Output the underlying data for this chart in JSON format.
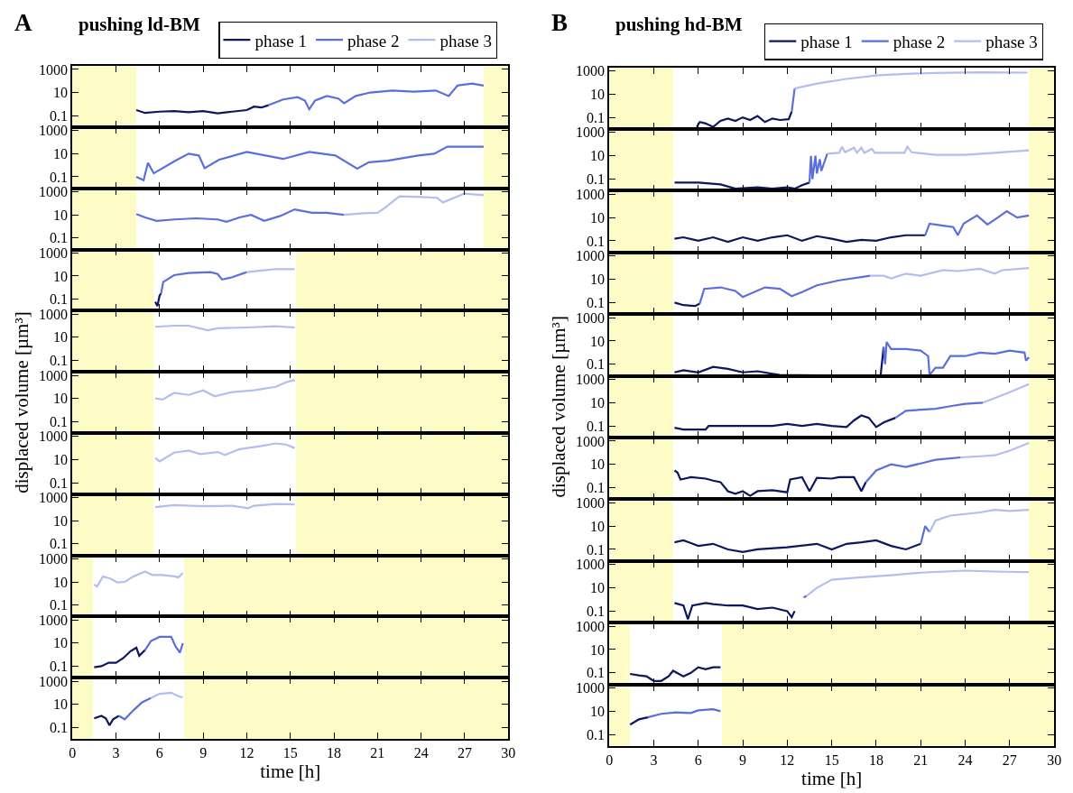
{
  "chart_data": [
    {
      "type": "line",
      "title": "pushing ld-BM",
      "annotations": [
        "A"
      ],
      "legend": "top right",
      "log": "y",
      "tick_labels": "y",
      "xlim": [
        0,
        30
      ],
      "xticks": [
        0,
        3,
        6,
        9,
        12,
        15,
        18,
        21,
        24,
        27,
        30
      ],
      "ylim": [
        0.01,
        2000
      ],
      "yticks": [
        0.1,
        10,
        1000
      ],
      "bands": [
        {
          "axis": "x",
          "from": 0,
          "to": 4.4,
          "color": "#fefcc6"
        },
        {
          "axis": "x",
          "from": 28.3,
          "to": 30,
          "color": "#fefcc6"
        }
      ],
      "series": [
        {
          "name": "phase 1",
          "color": "#0c1761",
          "x": [
            4.4,
            5,
            6,
            7,
            8,
            9,
            10,
            11,
            12,
            12.5,
            13,
            13.5
          ],
          "values": [
            0.3,
            0.17,
            0.22,
            0.25,
            0.2,
            0.25,
            0.16,
            0.22,
            0.3,
            0.6,
            0.5,
            0.8
          ]
        },
        {
          "name": "phase 2",
          "color": "#5a6fdb",
          "x": [
            13.5,
            14.5,
            15.5,
            16,
            16.3,
            16.7,
            17.5,
            18.3,
            18.7,
            19.5,
            20.5,
            22,
            23.5,
            25,
            25.9,
            26.5,
            27.5,
            28.3
          ],
          "values": [
            0.8,
            2.5,
            4,
            2,
            0.35,
            2,
            5,
            3,
            1.2,
            5,
            10,
            15,
            12,
            15,
            5,
            40,
            60,
            40
          ]
        }
      ]
    },
    {
      "type": "line",
      "log": "y",
      "tick_labels": "y",
      "xlim": [
        0,
        30
      ],
      "xticks": [
        0,
        3,
        6,
        9,
        12,
        15,
        18,
        21,
        24,
        27,
        30
      ],
      "ylim": [
        0.01,
        2000
      ],
      "yticks": [
        0.1,
        10,
        1000
      ],
      "bands": [
        {
          "axis": "x",
          "from": 0,
          "to": 4.4,
          "color": "#fefcc6"
        },
        {
          "axis": "x",
          "from": 28.3,
          "to": 30,
          "color": "#fefcc6"
        }
      ],
      "series": [
        {
          "name": "phase 2",
          "color": "#5a6fdb",
          "x": [
            4.4,
            4.9,
            5.2,
            5.6,
            7.1,
            8,
            8.7,
            9.1,
            10.1,
            12,
            14.5,
            16.3,
            18.1,
            19.6,
            20.4,
            21.7,
            23.8,
            24.9,
            25.8,
            28.3
          ],
          "values": [
            0.1,
            0.05,
            1.6,
            0.2,
            2.5,
            10,
            7,
            0.55,
            3,
            14,
            3.5,
            14,
            7,
            0.5,
            1.8,
            2.5,
            7,
            10,
            40,
            40
          ]
        }
      ]
    },
    {
      "type": "line",
      "log": "y",
      "tick_labels": "y",
      "xlim": [
        0,
        30
      ],
      "xticks": [
        0,
        3,
        6,
        9,
        12,
        15,
        18,
        21,
        24,
        27,
        30
      ],
      "ylim": [
        0.01,
        2000
      ],
      "yticks": [
        0.1,
        10,
        1000
      ],
      "bands": [
        {
          "axis": "x",
          "from": 0,
          "to": 4.4,
          "color": "#fefcc6"
        },
        {
          "axis": "x",
          "from": 28.3,
          "to": 30,
          "color": "#fefcc6"
        }
      ],
      "series": [
        {
          "name": "phase 2",
          "color": "#5a6fdb",
          "x": [
            4.4,
            5,
            5.8,
            7,
            8.5,
            10,
            10.6,
            11.5,
            12.3,
            13.2,
            14.3,
            15.3,
            16.5,
            17.5,
            18.7
          ],
          "values": [
            12,
            6,
            3,
            4,
            5,
            4,
            2.5,
            6,
            10,
            3,
            8,
            30,
            15,
            15,
            10
          ]
        },
        {
          "name": "phase 3",
          "color": "#b4bdf0",
          "x": [
            18.7,
            20,
            21,
            21.5,
            22.5,
            24,
            25.1,
            25.5,
            26.6,
            27,
            28.3
          ],
          "values": [
            10,
            14,
            15,
            40,
            400,
            350,
            300,
            120,
            450,
            700,
            500
          ]
        }
      ]
    },
    {
      "type": "line",
      "log": "y",
      "tick_labels": "y",
      "xlim": [
        0,
        30
      ],
      "xticks": [
        0,
        3,
        6,
        9,
        12,
        15,
        18,
        21,
        24,
        27,
        30
      ],
      "ylim": [
        0.01,
        2000
      ],
      "yticks": [
        0.1,
        10,
        1000
      ],
      "bands": [
        {
          "axis": "x",
          "from": 0,
          "to": 5.6,
          "color": "#fefcc6"
        },
        {
          "axis": "x",
          "from": 15.4,
          "to": 30,
          "color": "#fefcc6"
        }
      ],
      "series": [
        {
          "name": "phase 1",
          "color": "#0c1761",
          "x": [
            5.7,
            5.85,
            6,
            6.1
          ],
          "values": [
            0.06,
            0.025,
            0.2,
            0.3
          ]
        },
        {
          "name": "phase 2",
          "color": "#5a6fdb",
          "x": [
            6.1,
            6.25,
            7,
            8,
            9.5,
            10,
            10.3,
            11,
            12
          ],
          "values": [
            0.3,
            3,
            12,
            18,
            22,
            15,
            5,
            8,
            22
          ]
        },
        {
          "name": "phase 3",
          "color": "#b4bdf0",
          "x": [
            12,
            13,
            14,
            15.3
          ],
          "values": [
            22,
            30,
            40,
            40
          ]
        }
      ]
    },
    {
      "type": "line",
      "log": "y",
      "tick_labels": "y",
      "xlim": [
        0,
        30
      ],
      "xticks": [
        0,
        3,
        6,
        9,
        12,
        15,
        18,
        21,
        24,
        27,
        30
      ],
      "ylim": [
        0.01,
        2000
      ],
      "yticks": [
        0.1,
        10,
        1000
      ],
      "bands": [
        {
          "axis": "x",
          "from": 0,
          "to": 5.6,
          "color": "#fefcc6"
        },
        {
          "axis": "x",
          "from": 15.4,
          "to": 30,
          "color": "#fefcc6"
        }
      ],
      "series": [
        {
          "name": "phase 3",
          "color": "#b4bdf0",
          "x": [
            5.7,
            7,
            8,
            9.3,
            10,
            12,
            14,
            15.3
          ],
          "values": [
            80,
            100,
            100,
            40,
            60,
            70,
            90,
            70
          ]
        }
      ]
    },
    {
      "type": "line",
      "ylabel": "displaced volume [µm³]",
      "log": "y",
      "tick_labels": "y",
      "xlim": [
        0,
        30
      ],
      "xticks": [
        0,
        3,
        6,
        9,
        12,
        15,
        18,
        21,
        24,
        27,
        30
      ],
      "ylim": [
        0.01,
        2000
      ],
      "yticks": [
        0.1,
        10,
        1000
      ],
      "bands": [
        {
          "axis": "x",
          "from": 0,
          "to": 5.6,
          "color": "#fefcc6"
        },
        {
          "axis": "x",
          "from": 15.4,
          "to": 30,
          "color": "#fefcc6"
        }
      ],
      "series": [
        {
          "name": "phase 3",
          "color": "#b4bdf0",
          "x": [
            5.7,
            6.2,
            7,
            8,
            9,
            9.8,
            11,
            12.5,
            14,
            14.7,
            15.3
          ],
          "values": [
            10,
            8,
            30,
            20,
            50,
            15,
            35,
            50,
            100,
            250,
            400
          ]
        }
      ]
    },
    {
      "type": "line",
      "log": "y",
      "tick_labels": "y",
      "xlim": [
        0,
        30
      ],
      "xticks": [
        0,
        3,
        6,
        9,
        12,
        15,
        18,
        21,
        24,
        27,
        30
      ],
      "ylim": [
        0.01,
        2000
      ],
      "yticks": [
        0.1,
        10,
        1000
      ],
      "bands": [
        {
          "axis": "x",
          "from": 0,
          "to": 5.6,
          "color": "#fefcc6"
        },
        {
          "axis": "x",
          "from": 15.4,
          "to": 30,
          "color": "#fefcc6"
        }
      ],
      "series": [
        {
          "name": "phase 3",
          "color": "#b4bdf0",
          "x": [
            5.7,
            6,
            7,
            8,
            8.8,
            10,
            10.5,
            11.5,
            13,
            14,
            14.7,
            15.3
          ],
          "values": [
            14,
            7,
            40,
            60,
            30,
            45,
            25,
            80,
            150,
            250,
            200,
            100
          ]
        }
      ]
    },
    {
      "type": "line",
      "log": "y",
      "tick_labels": "y",
      "xlim": [
        0,
        30
      ],
      "xticks": [
        0,
        3,
        6,
        9,
        12,
        15,
        18,
        21,
        24,
        27,
        30
      ],
      "ylim": [
        0.01,
        2000
      ],
      "yticks": [
        0.1,
        10,
        1000
      ],
      "bands": [
        {
          "axis": "x",
          "from": 0,
          "to": 5.6,
          "color": "#fefcc6"
        },
        {
          "axis": "x",
          "from": 15.4,
          "to": 30,
          "color": "#fefcc6"
        }
      ],
      "series": [
        {
          "name": "phase 3",
          "color": "#b4bdf0",
          "x": [
            5.7,
            7,
            9,
            11,
            12.1,
            12.5,
            14,
            15.3
          ],
          "values": [
            150,
            230,
            180,
            200,
            120,
            200,
            280,
            260
          ]
        }
      ]
    },
    {
      "type": "line",
      "log": "y",
      "tick_labels": "y",
      "xlim": [
        0,
        30
      ],
      "xticks": [
        0,
        3,
        6,
        9,
        12,
        15,
        18,
        21,
        24,
        27,
        30
      ],
      "ylim": [
        0.01,
        2000
      ],
      "yticks": [
        0.1,
        10,
        1000
      ],
      "bands": [
        {
          "axis": "x",
          "from": 0,
          "to": 1.4,
          "color": "#fefcc6"
        },
        {
          "axis": "x",
          "from": 7.7,
          "to": 30,
          "color": "#fefcc6"
        }
      ],
      "series": [
        {
          "name": "phase 3",
          "color": "#b4bdf0",
          "x": [
            1.5,
            1.7,
            2.1,
            2.6,
            3.1,
            3.6,
            4.2,
            5,
            5.5,
            6.2,
            7,
            7.3,
            7.6
          ],
          "values": [
            6,
            4,
            30,
            20,
            9,
            10,
            30,
            80,
            40,
            40,
            30,
            25,
            60
          ]
        }
      ]
    },
    {
      "type": "line",
      "log": "y",
      "tick_labels": "y",
      "xlim": [
        0,
        30
      ],
      "xticks": [
        0,
        3,
        6,
        9,
        12,
        15,
        18,
        21,
        24,
        27,
        30
      ],
      "ylim": [
        0.01,
        2000
      ],
      "yticks": [
        0.1,
        10,
        1000
      ],
      "bands": [
        {
          "axis": "x",
          "from": 0,
          "to": 1.4,
          "color": "#fefcc6"
        },
        {
          "axis": "x",
          "from": 7.7,
          "to": 30,
          "color": "#fefcc6"
        }
      ],
      "series": [
        {
          "name": "phase 1",
          "color": "#0c1761",
          "x": [
            1.5,
            2,
            2.5,
            3,
            3.5,
            4,
            4.4,
            4.6,
            5
          ],
          "values": [
            0.08,
            0.1,
            0.2,
            0.2,
            0.5,
            2,
            4,
            0.8,
            2.5
          ]
        },
        {
          "name": "phase 2",
          "color": "#5a6fdb",
          "x": [
            5,
            5.4,
            6,
            6.8,
            7.1,
            7.4,
            7.6
          ],
          "values": [
            2.5,
            15,
            35,
            35,
            5,
            1.5,
            10
          ]
        }
      ]
    },
    {
      "type": "line",
      "xlabel": "time [h]",
      "log": "y",
      "xlim": [
        0,
        30
      ],
      "xticks": [
        0,
        3,
        6,
        9,
        12,
        15,
        18,
        21,
        24,
        27,
        30
      ],
      "ylim": [
        0.01,
        2000
      ],
      "yticks": [
        0.1,
        10,
        1000
      ],
      "bands": [
        {
          "axis": "x",
          "from": 0,
          "to": 1.4,
          "color": "#fefcc6"
        },
        {
          "axis": "x",
          "from": 7.7,
          "to": 30,
          "color": "#fefcc6"
        }
      ],
      "series": [
        {
          "name": "phase 1",
          "color": "#0c1761",
          "x": [
            1.5,
            2,
            2.3,
            2.55,
            2.8,
            3.2
          ],
          "values": [
            0.6,
            1,
            0.6,
            0.15,
            0.5,
            1
          ]
        },
        {
          "name": "phase 2",
          "color": "#5a6fdb",
          "x": [
            3.2,
            3.6,
            4.2,
            4.8,
            5.4
          ],
          "values": [
            1,
            0.5,
            3,
            15,
            35
          ]
        },
        {
          "name": "phase 3",
          "color": "#b4bdf0",
          "x": [
            5.4,
            6,
            6.8,
            7.3,
            7.6
          ],
          "values": [
            35,
            80,
            100,
            50,
            40
          ]
        }
      ]
    },
    {
      "type": "line",
      "title": "pushing hd-BM",
      "annotations": [
        "B"
      ],
      "legend": "top right",
      "log": "y",
      "tick_labels": "y",
      "xlim": [
        0,
        30
      ],
      "xticks": [
        0,
        3,
        6,
        9,
        12,
        15,
        18,
        21,
        24,
        27,
        30
      ],
      "ylim": [
        0.01,
        2000
      ],
      "yticks": [
        0.1,
        10,
        1000
      ],
      "bands": [
        {
          "axis": "x",
          "from": 0,
          "to": 4.3,
          "color": "#fefcc6"
        },
        {
          "axis": "x",
          "from": 28.3,
          "to": 30,
          "color": "#fefcc6"
        }
      ],
      "series": [
        {
          "name": "phase 1",
          "color": "#0c1761",
          "x": [
            5.9,
            6.1,
            6.5,
            7,
            7.5,
            8,
            8.5,
            9,
            9.5,
            10,
            10.5,
            11,
            11.5,
            12.1,
            12.3
          ],
          "values": [
            0.015,
            0.04,
            0.03,
            0.015,
            0.05,
            0.08,
            0.05,
            0.1,
            0.06,
            0.13,
            0.04,
            0.08,
            0.06,
            0.07,
            0.3
          ]
        },
        {
          "name": "phase 2",
          "color": "#5a6fdb",
          "x": [
            12.3,
            12.4,
            12.5
          ],
          "values": [
            0.3,
            3,
            30
          ]
        },
        {
          "name": "phase 3",
          "color": "#b4bdf0",
          "x": [
            12.5,
            14,
            16,
            18,
            20,
            22,
            25,
            28.2
          ],
          "values": [
            30,
            80,
            200,
            400,
            550,
            650,
            750,
            700
          ]
        }
      ]
    },
    {
      "type": "line",
      "log": "y",
      "tick_labels": "y",
      "xlim": [
        0,
        30
      ],
      "xticks": [
        0,
        3,
        6,
        9,
        12,
        15,
        18,
        21,
        24,
        27,
        30
      ],
      "ylim": [
        0.01,
        2000
      ],
      "yticks": [
        0.1,
        10,
        1000
      ],
      "bands": [
        {
          "axis": "x",
          "from": 0,
          "to": 4.3,
          "color": "#fefcc6"
        },
        {
          "axis": "x",
          "from": 28.3,
          "to": 30,
          "color": "#fefcc6"
        }
      ],
      "series": [
        {
          "name": "phase 1",
          "color": "#0c1761",
          "x": [
            4.4,
            6,
            7.5,
            8.5,
            10,
            11,
            12,
            12.5,
            13,
            13.5
          ],
          "values": [
            0.05,
            0.05,
            0.035,
            0.015,
            0.02,
            0.015,
            0.02,
            0.015,
            0.03,
            0.05
          ]
        },
        {
          "name": "phase 2",
          "color": "#5a6fdb",
          "x": [
            13.5,
            13.6,
            13.7,
            13.9,
            14,
            14.2,
            14.3,
            14.7
          ],
          "values": [
            0.05,
            10,
            0.1,
            10,
            0.3,
            5,
            0.5,
            15
          ]
        },
        {
          "name": "phase 3",
          "color": "#b4bdf0",
          "x": [
            14.7,
            15.5,
            15.7,
            15.9,
            16.5,
            16.7,
            17,
            17.2,
            17.7,
            17.9,
            19.9,
            20.1,
            20.4,
            22,
            24,
            26,
            28.3
          ],
          "values": [
            15,
            18,
            60,
            20,
            50,
            18,
            50,
            18,
            40,
            18,
            18,
            60,
            20,
            12,
            12,
            18,
            30
          ]
        }
      ]
    },
    {
      "type": "line",
      "log": "y",
      "tick_labels": "y",
      "xlim": [
        0,
        30
      ],
      "xticks": [
        0,
        3,
        6,
        9,
        12,
        15,
        18,
        21,
        24,
        27,
        30
      ],
      "ylim": [
        0.01,
        2000
      ],
      "yticks": [
        0.1,
        10,
        1000
      ],
      "bands": [
        {
          "axis": "x",
          "from": 0,
          "to": 4.3,
          "color": "#fefcc6"
        },
        {
          "axis": "x",
          "from": 28.3,
          "to": 30,
          "color": "#fefcc6"
        }
      ],
      "series": [
        {
          "name": "phase 1",
          "color": "#0c1761",
          "x": [
            4.4,
            5,
            6,
            7,
            8,
            9,
            10,
            11,
            12,
            13,
            14,
            15,
            16,
            17,
            18,
            19,
            20,
            21.3
          ],
          "values": [
            0.15,
            0.2,
            0.1,
            0.2,
            0.08,
            0.2,
            0.1,
            0.2,
            0.3,
            0.1,
            0.25,
            0.15,
            0.08,
            0.12,
            0.1,
            0.2,
            0.3,
            0.3
          ]
        },
        {
          "name": "phase 2",
          "color": "#5a6fdb",
          "x": [
            21.3,
            21.6,
            22.5,
            23.2,
            23.5,
            23.9,
            24.8,
            25.5,
            26.2,
            26.8,
            27.5,
            28.3
          ],
          "values": [
            0.3,
            3,
            2,
            1.5,
            0.3,
            3,
            15,
            2.5,
            10,
            35,
            10,
            15
          ]
        }
      ]
    },
    {
      "type": "line",
      "log": "y",
      "tick_labels": "y",
      "xlim": [
        0,
        30
      ],
      "xticks": [
        0,
        3,
        6,
        9,
        12,
        15,
        18,
        21,
        24,
        27,
        30
      ],
      "ylim": [
        0.01,
        2000
      ],
      "yticks": [
        0.1,
        10,
        1000
      ],
      "bands": [
        {
          "axis": "x",
          "from": 0,
          "to": 4.3,
          "color": "#fefcc6"
        },
        {
          "axis": "x",
          "from": 28.3,
          "to": 30,
          "color": "#fefcc6"
        }
      ],
      "series": [
        {
          "name": "phase 1",
          "color": "#0c1761",
          "x": [
            4.4,
            5,
            5.8,
            6.1
          ],
          "values": [
            0.1,
            0.06,
            0.05,
            0.08
          ]
        },
        {
          "name": "phase 2",
          "color": "#5a6fdb",
          "x": [
            6.1,
            6.4,
            7.5,
            8.5,
            9,
            10.5,
            11.5,
            12.3,
            13,
            14,
            15.5,
            17.6
          ],
          "values": [
            0.08,
            1.5,
            2,
            1,
            0.3,
            2,
            1.5,
            0.35,
            0.8,
            3,
            8,
            20
          ]
        },
        {
          "name": "phase 3",
          "color": "#b4bdf0",
          "x": [
            17.6,
            18.5,
            19,
            20,
            21,
            22.5,
            23.5,
            25,
            26,
            26.5,
            28.3
          ],
          "values": [
            20,
            20,
            12,
            30,
            20,
            60,
            50,
            80,
            30,
            60,
            90
          ]
        }
      ]
    },
    {
      "type": "line",
      "log": "y",
      "tick_labels": "y",
      "xlim": [
        0,
        30
      ],
      "xticks": [
        0,
        3,
        6,
        9,
        12,
        15,
        18,
        21,
        24,
        27,
        30
      ],
      "ylim": [
        0.01,
        2000
      ],
      "yticks": [
        0.1,
        10,
        1000
      ],
      "bands": [
        {
          "axis": "x",
          "from": 0,
          "to": 4.3,
          "color": "#fefcc6"
        },
        {
          "axis": "x",
          "from": 28.3,
          "to": 30,
          "color": "#fefcc6"
        }
      ],
      "series": [
        {
          "name": "phase 1",
          "color": "#0c1761",
          "x": [
            4.4,
            5,
            6,
            7,
            8,
            9,
            10,
            11,
            11.5,
            14.2,
            16,
            18.3,
            18.5
          ],
          "values": [
            0.02,
            0.03,
            0.02,
            0.06,
            0.04,
            0.02,
            0.025,
            0.015,
            0.012,
            0.011,
            null,
            0.012,
            3
          ]
        },
        {
          "name": "phase 2",
          "color": "#5a6fdb",
          "x": [
            18.5,
            18.6,
            18.7,
            19,
            20,
            21,
            21.5,
            21.6,
            22,
            22.5,
            23,
            24,
            25,
            26,
            27,
            28,
            28.1,
            28.3
          ],
          "values": [
            3,
            0.1,
            8,
            2,
            2,
            1.5,
            0.5,
            0.012,
            0.05,
            0.05,
            0.5,
            0.5,
            1,
            0.8,
            1.5,
            1,
            0.2,
            0.4
          ]
        }
      ]
    },
    {
      "type": "line",
      "ylabel": "displaced volume [µm³]",
      "log": "y",
      "tick_labels": "y",
      "xlim": [
        0,
        30
      ],
      "xticks": [
        0,
        3,
        6,
        9,
        12,
        15,
        18,
        21,
        24,
        27,
        30
      ],
      "ylim": [
        0.01,
        2000
      ],
      "yticks": [
        0.1,
        10,
        1000
      ],
      "bands": [
        {
          "axis": "x",
          "from": 0,
          "to": 4.3,
          "color": "#fefcc6"
        },
        {
          "axis": "x",
          "from": 28.3,
          "to": 30,
          "color": "#fefcc6"
        }
      ],
      "series": [
        {
          "name": "phase 1",
          "color": "#0c1761",
          "x": [
            4.4,
            5,
            6.5,
            6.7,
            8,
            11,
            12,
            13,
            14,
            15,
            16,
            16.5,
            17,
            17.5,
            18,
            18.5,
            19.3
          ],
          "values": [
            0.07,
            0.05,
            0.05,
            0.1,
            0.1,
            0.1,
            0.15,
            0.1,
            0.15,
            0.1,
            0.08,
            0.3,
            0.8,
            0.5,
            0.08,
            0.2,
            0.5
          ]
        },
        {
          "name": "phase 2",
          "color": "#5a6fdb",
          "x": [
            19.3,
            20,
            21,
            22,
            23,
            24,
            25.2
          ],
          "values": [
            0.5,
            2,
            2.5,
            3,
            5,
            8,
            10
          ]
        },
        {
          "name": "phase 3",
          "color": "#b4bdf0",
          "x": [
            25.2,
            26,
            27,
            28.3
          ],
          "values": [
            10,
            25,
            80,
            400
          ]
        }
      ]
    },
    {
      "type": "line",
      "log": "y",
      "tick_labels": "y",
      "xlim": [
        0,
        30
      ],
      "xticks": [
        0,
        3,
        6,
        9,
        12,
        15,
        18,
        21,
        24,
        27,
        30
      ],
      "ylim": [
        0.01,
        2000
      ],
      "yticks": [
        0.1,
        10,
        1000
      ],
      "bands": [
        {
          "axis": "x",
          "from": 0,
          "to": 4.3,
          "color": "#fefcc6"
        },
        {
          "axis": "x",
          "from": 28.3,
          "to": 30,
          "color": "#fefcc6"
        }
      ],
      "series": [
        {
          "name": "phase 1",
          "color": "#0c1761",
          "x": [
            4.4,
            4.6,
            4.8,
            5.5,
            6.5,
            7,
            7.5,
            8,
            8.5,
            9,
            9.5,
            10,
            11,
            12,
            12.2,
            13,
            13.5,
            14,
            15,
            15.5,
            16.5,
            17,
            17.3
          ],
          "values": [
            3,
            2,
            0.5,
            0.8,
            0.6,
            0.4,
            0.3,
            0.05,
            0.03,
            0.05,
            0.02,
            0.05,
            0.06,
            0.04,
            0.5,
            0.8,
            0.05,
            0.7,
            0.6,
            0.8,
            0.8,
            0.05,
            0.3
          ]
        },
        {
          "name": "phase 2",
          "color": "#5a6fdb",
          "x": [
            17.3,
            18,
            19,
            20,
            21,
            22,
            23.7
          ],
          "values": [
            0.3,
            3,
            10,
            6,
            12,
            25,
            40
          ]
        },
        {
          "name": "phase 3",
          "color": "#b4bdf0",
          "x": [
            23.7,
            25,
            26,
            27,
            28.3
          ],
          "values": [
            40,
            50,
            60,
            150,
            700
          ]
        }
      ]
    },
    {
      "type": "line",
      "log": "y",
      "tick_labels": "y",
      "xlim": [
        0,
        30
      ],
      "xticks": [
        0,
        3,
        6,
        9,
        12,
        15,
        18,
        21,
        24,
        27,
        30
      ],
      "ylim": [
        0.01,
        2000
      ],
      "yticks": [
        0.1,
        10,
        1000
      ],
      "bands": [
        {
          "axis": "x",
          "from": 0,
          "to": 4.3,
          "color": "#fefcc6"
        },
        {
          "axis": "x",
          "from": 28.3,
          "to": 30,
          "color": "#fefcc6"
        }
      ],
      "series": [
        {
          "name": "phase 1",
          "color": "#0c1761",
          "x": [
            4.4,
            5,
            6,
            7,
            8,
            9,
            10,
            12,
            14,
            15,
            16,
            17,
            18,
            19,
            20,
            21
          ],
          "values": [
            0.4,
            0.6,
            0.2,
            0.3,
            0.1,
            0.06,
            0.1,
            0.15,
            0.3,
            0.1,
            0.3,
            0.4,
            0.6,
            0.2,
            0.1,
            0.3
          ]
        },
        {
          "name": "phase 2",
          "color": "#5a6fdb",
          "x": [
            21,
            21.3,
            21.6
          ],
          "values": [
            0.3,
            10,
            3
          ]
        },
        {
          "name": "phase 3",
          "color": "#b4bdf0",
          "x": [
            21.6,
            22,
            23,
            25,
            26,
            27,
            28.3
          ],
          "values": [
            3,
            30,
            80,
            150,
            250,
            200,
            250
          ]
        }
      ]
    },
    {
      "type": "line",
      "log": "y",
      "tick_labels": "y",
      "xlim": [
        0,
        30
      ],
      "xticks": [
        0,
        3,
        6,
        9,
        12,
        15,
        18,
        21,
        24,
        27,
        30
      ],
      "ylim": [
        0.01,
        2000
      ],
      "yticks": [
        0.1,
        10,
        1000
      ],
      "bands": [
        {
          "axis": "x",
          "from": 0,
          "to": 4.3,
          "color": "#fefcc6"
        },
        {
          "axis": "x",
          "from": 28.3,
          "to": 30,
          "color": "#fefcc6"
        }
      ],
      "series": [
        {
          "name": "phase 1",
          "color": "#0c1761",
          "x": [
            4.4,
            5,
            5.3,
            5.6,
            6.5,
            7,
            8,
            9,
            10,
            11,
            12,
            12.3,
            12.5
          ],
          "values": [
            0.5,
            0.3,
            0.02,
            0.3,
            0.5,
            0.4,
            0.3,
            0.3,
            0.15,
            0.2,
            0.1,
            0.03,
            0.1
          ]
        },
        {
          "name": "phase 2",
          "color": "#5a6fdb",
          "x": [
            13.1,
            13.3
          ],
          "values": [
            1.5,
            2
          ]
        },
        {
          "name": "phase 3",
          "color": "#b4bdf0",
          "x": [
            13.3,
            14,
            15,
            17,
            19,
            21,
            24,
            26,
            28.3
          ],
          "values": [
            2,
            10,
            50,
            80,
            120,
            200,
            300,
            250,
            220
          ]
        }
      ]
    },
    {
      "type": "line",
      "log": "y",
      "tick_labels": "y",
      "xlim": [
        0,
        30
      ],
      "xticks": [
        0,
        3,
        6,
        9,
        12,
        15,
        18,
        21,
        24,
        27,
        30
      ],
      "ylim": [
        0.01,
        2000
      ],
      "yticks": [
        0.1,
        10,
        1000
      ],
      "bands": [
        {
          "axis": "x",
          "from": 0,
          "to": 1.4,
          "color": "#fefcc6"
        },
        {
          "axis": "x",
          "from": 7.6,
          "to": 30,
          "color": "#fefcc6"
        }
      ],
      "series": [
        {
          "name": "phase 1",
          "color": "#0c1761",
          "x": [
            1.4,
            2,
            2.5,
            3,
            3.5,
            4,
            4.3,
            5,
            5.5,
            6,
            6.5,
            7,
            7.5
          ],
          "values": [
            0.08,
            0.06,
            0.05,
            0.02,
            0.02,
            0.05,
            0.15,
            0.05,
            0.1,
            0.3,
            0.2,
            0.3,
            0.3
          ]
        }
      ]
    },
    {
      "type": "line",
      "xlabel": "time [h]",
      "log": "y",
      "xlim": [
        0,
        30
      ],
      "xticks": [
        0,
        3,
        6,
        9,
        12,
        15,
        18,
        21,
        24,
        27,
        30
      ],
      "ylim": [
        0.01,
        2000
      ],
      "yticks": [
        0.1,
        10,
        1000
      ],
      "bands": [
        {
          "axis": "x",
          "from": 0,
          "to": 1.4,
          "color": "#fefcc6"
        },
        {
          "axis": "x",
          "from": 7.6,
          "to": 30,
          "color": "#fefcc6"
        }
      ],
      "series": [
        {
          "name": "phase 1",
          "color": "#0c1761",
          "x": [
            1.4,
            2,
            2.6
          ],
          "values": [
            0.7,
            2,
            3
          ]
        },
        {
          "name": "phase 2",
          "color": "#5a6fdb",
          "x": [
            2.6,
            3.5,
            4.5,
            5.5,
            6,
            7,
            7.5
          ],
          "values": [
            3,
            6,
            8,
            7,
            12,
            15,
            10
          ]
        }
      ]
    }
  ]
}
